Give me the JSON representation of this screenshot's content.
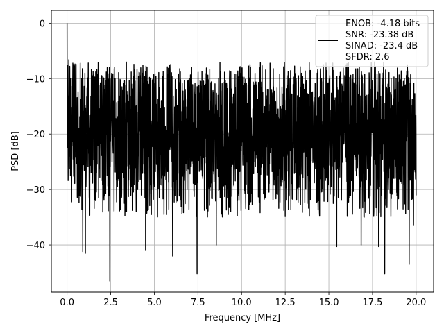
{
  "chart_data": {
    "type": "line",
    "xlabel": "Frequency [MHz]",
    "ylabel": "PSD [dB]",
    "xlim": [
      -0.9,
      21.0
    ],
    "ylim": [
      -48.5,
      2.3
    ],
    "xticks": [
      0.0,
      2.5,
      5.0,
      7.5,
      10.0,
      12.5,
      15.0,
      17.5,
      20.0
    ],
    "xtick_labels": [
      "0.0",
      "2.5",
      "5.0",
      "7.5",
      "10.0",
      "12.5",
      "15.0",
      "17.5",
      "20.0"
    ],
    "yticks": [
      0,
      -10,
      -20,
      -30,
      -40
    ],
    "ytick_labels": [
      "0",
      "−10",
      "−20",
      "−30",
      "−40"
    ],
    "grid": true,
    "legend_position": "top-right",
    "legend_entries": [
      "ENOB: -4.18 bits",
      "SNR: -23.38 dB",
      "SINAD: -23.4 dB",
      "SFDR: 2.6"
    ],
    "series": [
      {
        "color": "#000000",
        "x_range": [
          0.0,
          20.0
        ],
        "notable_points": [
          {
            "x": 0.0,
            "y": 0.0
          },
          {
            "x": 0.1,
            "y": -6.6
          },
          {
            "x": 0.9,
            "y": -41.2
          },
          {
            "x": 1.05,
            "y": -41.5
          },
          {
            "x": 2.45,
            "y": -46.5
          },
          {
            "x": 4.5,
            "y": -41.0
          },
          {
            "x": 6.05,
            "y": -42.0
          },
          {
            "x": 7.45,
            "y": -45.2
          },
          {
            "x": 8.55,
            "y": -40.0
          },
          {
            "x": 15.45,
            "y": -40.3
          },
          {
            "x": 16.85,
            "y": -40.0
          },
          {
            "x": 17.85,
            "y": -40.3
          },
          {
            "x": 18.2,
            "y": -45.2
          },
          {
            "x": 19.6,
            "y": -43.5
          },
          {
            "x": 19.85,
            "y": -36.5
          }
        ],
        "noise_mean": -20,
        "noise_top": -7,
        "noise_bottom": -35
      }
    ]
  }
}
